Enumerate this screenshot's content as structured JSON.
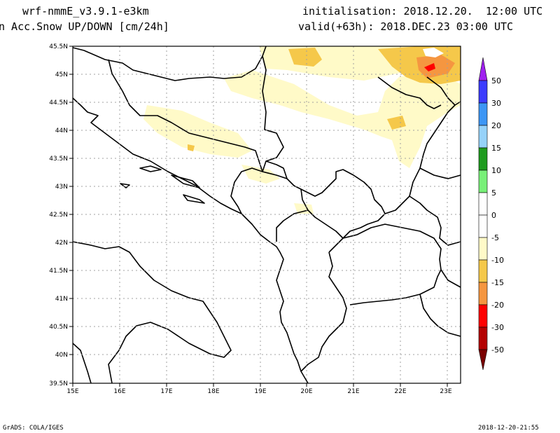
{
  "header": {
    "model": "wrf-nmmE_v3.9.1-e3km",
    "field": "n Acc.Snow UP/DOWN [cm/24h]",
    "init": "initialisation: 2018.12.20.  12:00 UTC",
    "valid": "valid(+63h): 2018.DEC.23 03:00 UTC"
  },
  "map": {
    "lat_labels": [
      "45.5N",
      "45N",
      "44.5N",
      "44N",
      "43.5N",
      "43N",
      "42.5N",
      "42N",
      "41.5N",
      "41N",
      "40.5N",
      "40N",
      "39.5N"
    ],
    "lon_labels": [
      "15E",
      "16E",
      "17E",
      "18E",
      "19E",
      "20E",
      "21E",
      "22E",
      "23E"
    ],
    "lat_range": [
      39.5,
      45.5
    ],
    "lon_range": [
      15,
      23.3
    ],
    "grid": "dotted"
  },
  "legend": {
    "labels": [
      "50",
      "30",
      "20",
      "15",
      "10",
      "5",
      "0",
      "-5",
      "-10",
      "-15",
      "-20",
      "-30",
      "-50"
    ],
    "colors": [
      "#a020f0",
      "#3c3cff",
      "#3c96f5",
      "#96d2fa",
      "#1e9b1e",
      "#78f078",
      "#ffffff",
      "#ffffff",
      "#fffac8",
      "#f5c84a",
      "#f59640",
      "#ff0000",
      "#b40000",
      "#7a0000"
    ]
  },
  "footer": {
    "left": "GrADS: COLA/IGES",
    "right": "2018-12-20-21:55"
  }
}
